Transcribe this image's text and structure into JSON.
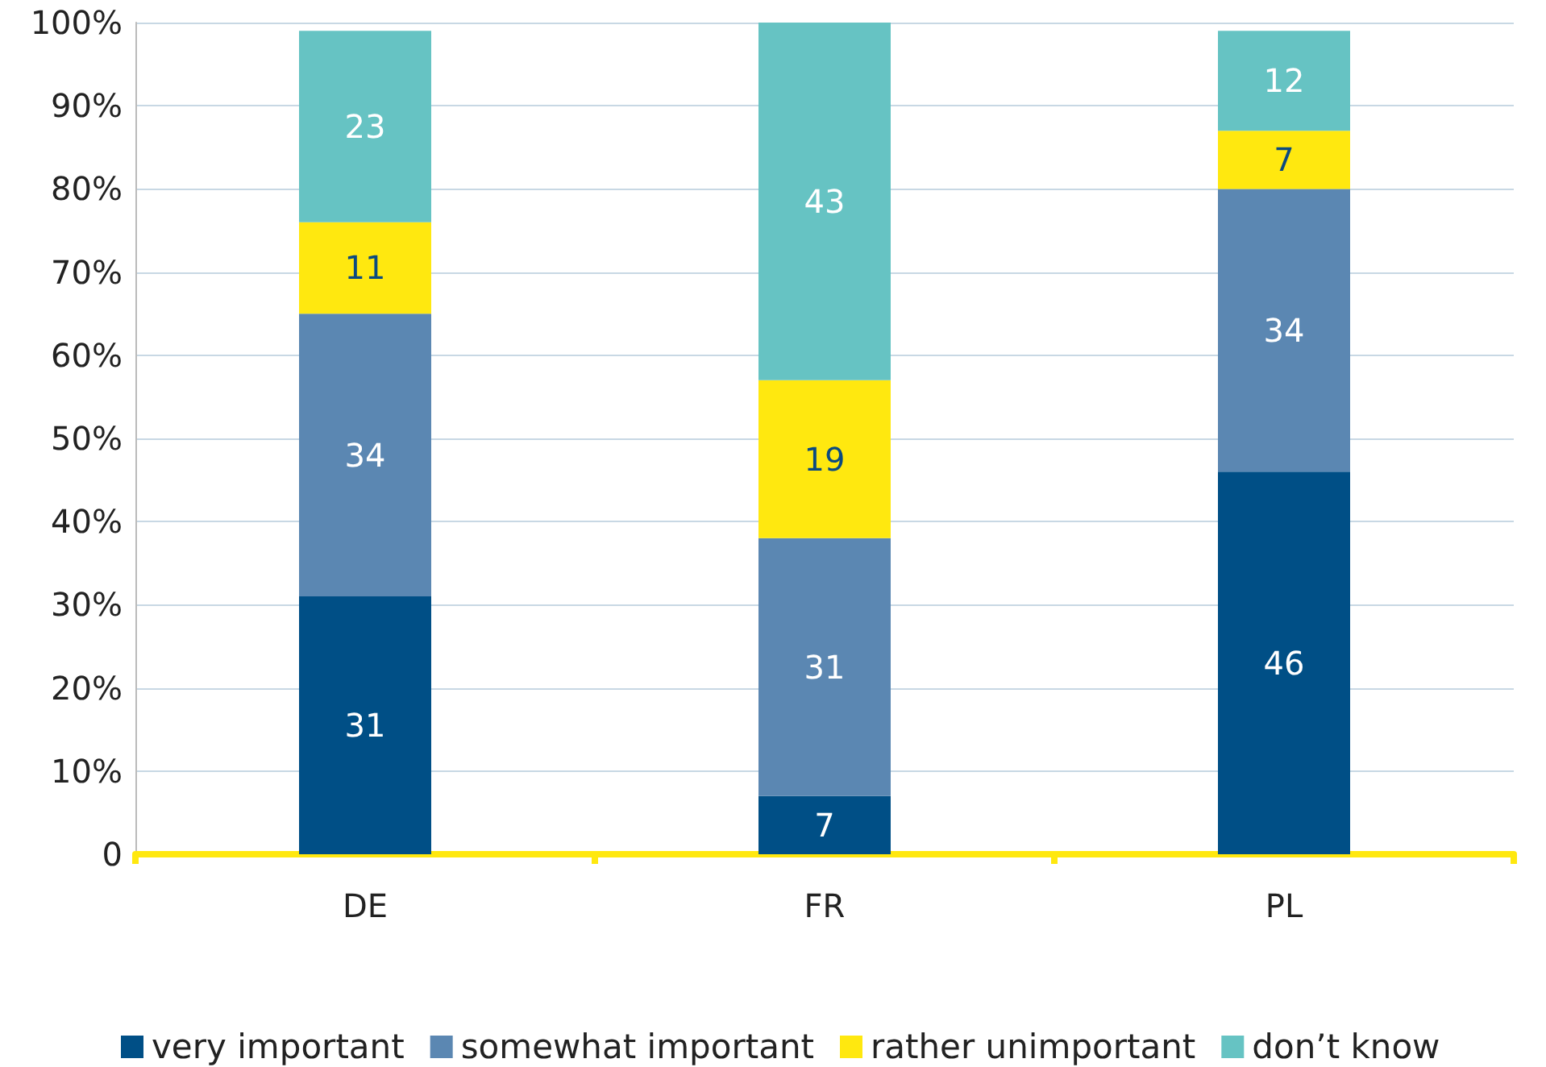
{
  "chart_data": {
    "type": "bar",
    "stacked": true,
    "categories": [
      "DE",
      "FR",
      "PL"
    ],
    "series": [
      {
        "name": "very important",
        "color": "#004f86",
        "values": [
          31,
          7,
          46
        ]
      },
      {
        "name": "somewhat important",
        "color": "#5b87b2",
        "values": [
          34,
          31,
          34
        ]
      },
      {
        "name": "rather unimportant",
        "color": "#ffe80f",
        "values": [
          11,
          19,
          7
        ]
      },
      {
        "name": "don’t know",
        "color": "#66c3c3",
        "values": [
          23,
          43,
          12
        ]
      }
    ],
    "ylim": [
      0,
      100
    ],
    "yticks": [
      0,
      {
        "value": 10,
        "label": "10%"
      },
      {
        "value": 20,
        "label": "20%"
      },
      {
        "value": 30,
        "label": "30%"
      },
      {
        "value": 40,
        "label": "40%"
      },
      {
        "value": 50,
        "label": "50%"
      },
      {
        "value": 60,
        "label": "60%"
      },
      {
        "value": 70,
        "label": "70%"
      },
      {
        "value": 80,
        "label": "80%"
      },
      {
        "value": 90,
        "label": "90%"
      },
      {
        "value": 100,
        "label": "100%"
      }
    ],
    "grid": "y",
    "legend": "bottom left",
    "data_labels": true
  }
}
